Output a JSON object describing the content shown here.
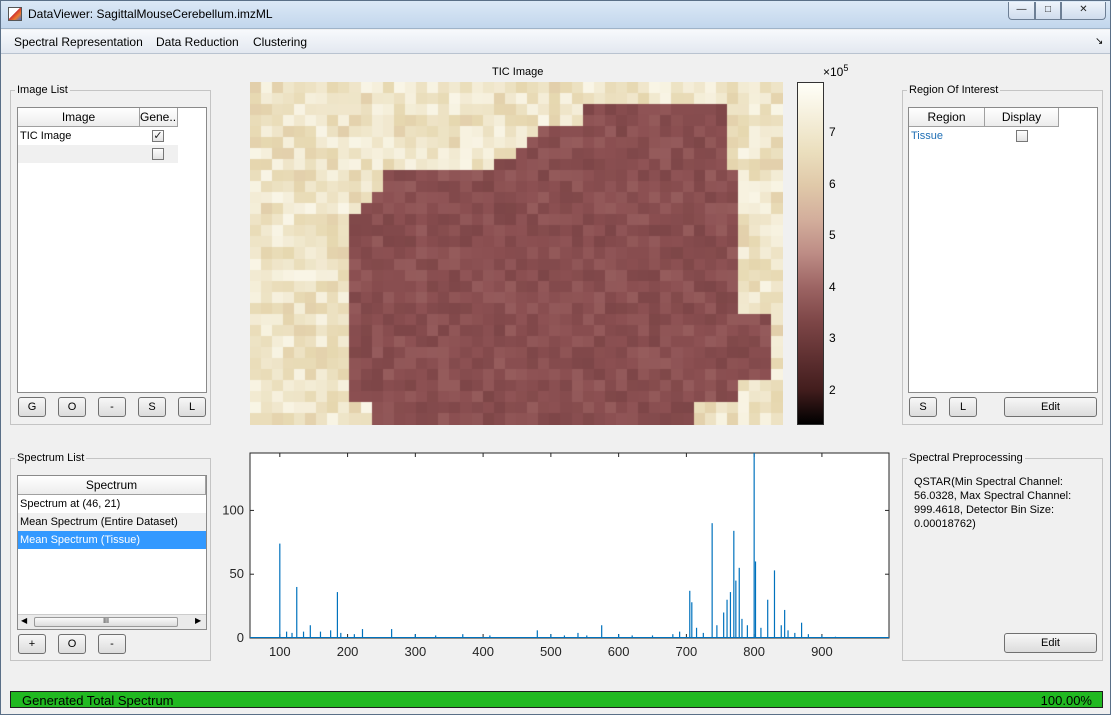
{
  "window": {
    "title": "DataViewer: SagittalMouseCerebellum.imzML",
    "min": "—",
    "max": "□",
    "close": "✕"
  },
  "menu": {
    "items": [
      "Spectral Representation",
      "Data Reduction",
      "Clustering"
    ],
    "overflow": "↘"
  },
  "image_list": {
    "title": "Image List",
    "columns": [
      "Image",
      "Gene..."
    ],
    "rows": [
      {
        "name": "TIC Image",
        "checked": true
      },
      {
        "name": "",
        "checked": false
      }
    ],
    "buttons": [
      "G",
      "O",
      "-",
      "S",
      "L"
    ]
  },
  "tic_image": {
    "title": "TIC Image",
    "colorbar_exponent": "×10",
    "colorbar_exponent_power": "5",
    "colorbar_ticks": [
      "7",
      "6",
      "5",
      "4",
      "3",
      "2"
    ]
  },
  "roi": {
    "title": "Region Of Interest",
    "columns": [
      "Region",
      "Display"
    ],
    "rows": [
      {
        "name": "Tissue",
        "checked": false
      }
    ],
    "buttons": [
      "S",
      "L",
      "Edit"
    ]
  },
  "spectrum_list": {
    "title": "Spectrum List",
    "column": "Spectrum",
    "rows": [
      "Spectrum at (46, 21)",
      "Mean Spectrum (Entire Dataset)",
      "Mean Spectrum (Tissue)"
    ],
    "selected_index": 2,
    "scroll_left": "◀",
    "scroll_right": "▶",
    "scroll_grip": "III",
    "buttons": [
      "+",
      "O",
      "-"
    ]
  },
  "preprocessing": {
    "title": "Spectral Preprocessing",
    "text": "QSTAR(Min Spectral Channel: 56.0328, Max Spectral Channel: 999.4618, Detector Bin Size: 0.00018762)",
    "button": "Edit"
  },
  "status": {
    "text": "Generated Total Spectrum",
    "percent": "100.00%",
    "progress": 1.0
  },
  "colors": {
    "accent": "#3399ff",
    "progress": "#21b921",
    "spectrum_line": "#0072bd",
    "roi_text": "#1f6fb5"
  },
  "chart_data": {
    "type": "line",
    "title": "",
    "xlabel": "",
    "ylabel": "",
    "xlim": [
      56,
      999
    ],
    "ylim": [
      0,
      145
    ],
    "xticks": [
      100,
      200,
      300,
      400,
      500,
      600,
      700,
      800,
      900
    ],
    "yticks": [
      0,
      50,
      100
    ],
    "series": [
      {
        "peaks": [
          [
            100,
            74
          ],
          [
            110,
            5
          ],
          [
            118,
            4
          ],
          [
            125,
            40
          ],
          [
            135,
            5
          ],
          [
            145,
            10
          ],
          [
            160,
            5
          ],
          [
            175,
            6
          ],
          [
            185,
            36
          ],
          [
            190,
            4
          ],
          [
            210,
            3
          ],
          [
            222,
            7
          ],
          [
            265,
            7
          ],
          [
            300,
            3
          ],
          [
            330,
            2
          ],
          [
            370,
            3
          ],
          [
            410,
            2
          ],
          [
            480,
            6
          ],
          [
            500,
            3
          ],
          [
            520,
            2
          ],
          [
            540,
            4
          ],
          [
            553,
            2
          ],
          [
            575,
            10
          ],
          [
            600,
            3
          ],
          [
            620,
            2
          ],
          [
            650,
            2
          ],
          [
            680,
            3
          ],
          [
            690,
            5
          ],
          [
            705,
            37
          ],
          [
            708,
            28
          ],
          [
            715,
            8
          ],
          [
            725,
            4
          ],
          [
            738,
            90
          ],
          [
            745,
            10
          ],
          [
            755,
            20
          ],
          [
            760,
            30
          ],
          [
            765,
            36
          ],
          [
            770,
            84
          ],
          [
            773,
            45
          ],
          [
            778,
            55
          ],
          [
            782,
            15
          ],
          [
            790,
            10
          ],
          [
            800,
            145
          ],
          [
            802,
            60
          ],
          [
            810,
            8
          ],
          [
            820,
            30
          ],
          [
            830,
            53
          ],
          [
            840,
            10
          ],
          [
            845,
            22
          ],
          [
            850,
            6
          ],
          [
            860,
            4
          ],
          [
            870,
            12
          ],
          [
            880,
            3
          ],
          [
            900,
            2
          ],
          [
            920,
            1
          ]
        ]
      }
    ]
  }
}
